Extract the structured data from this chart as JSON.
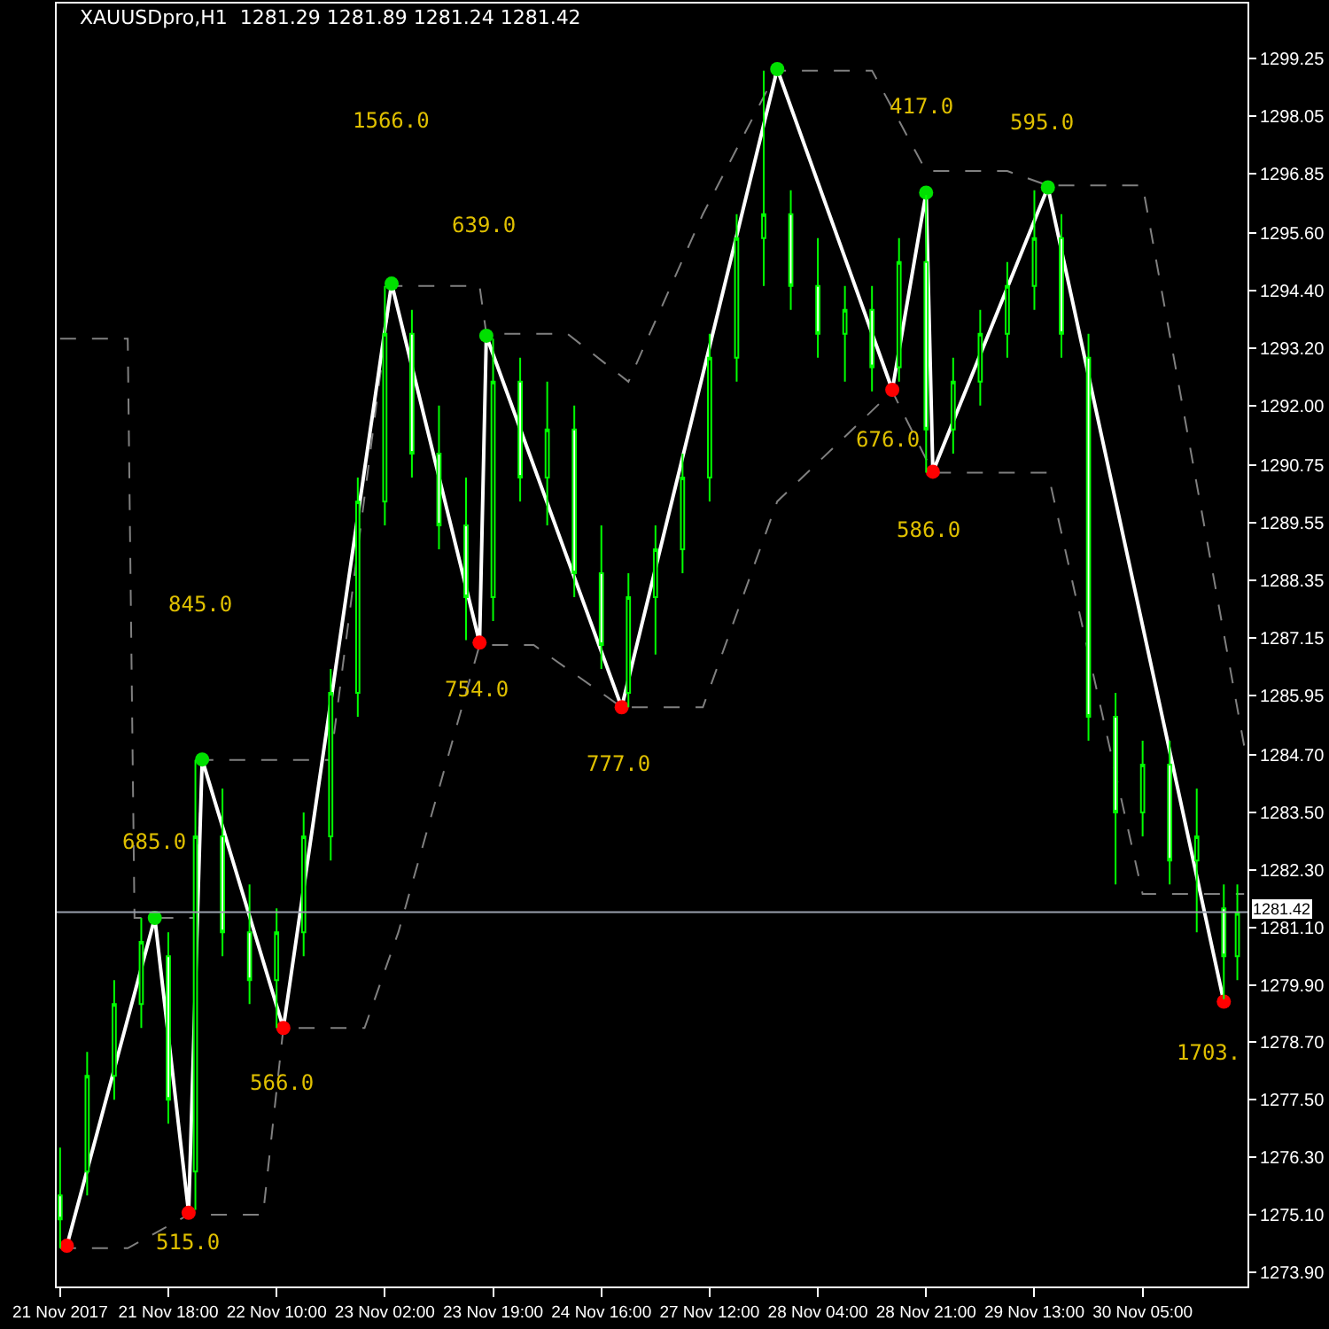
{
  "chart_data": {
    "type": "candlestick",
    "title": "XAUUSDpro,H1  1281.29 1281.89 1281.24 1281.42",
    "categories": [
      "21 Nov 2017",
      null,
      null,
      null,
      null,
      null,
      null,
      null,
      null,
      null,
      null,
      null,
      null,
      null,
      null,
      null,
      "21 Nov 18:00",
      null,
      null,
      null,
      null,
      null,
      null,
      null,
      null,
      null,
      null,
      null,
      null,
      null,
      null,
      null,
      "22 Nov 10:00",
      null,
      null,
      null,
      null,
      null,
      null,
      null,
      null,
      null,
      null,
      null,
      null,
      null,
      null,
      null,
      "23 Nov 02:00",
      null,
      null,
      null,
      null,
      null,
      null,
      null,
      null,
      null,
      null,
      null,
      null,
      null,
      null,
      null,
      "23 Nov 19:00",
      null,
      null,
      null,
      null,
      null,
      null,
      null,
      null,
      null,
      null,
      null,
      null,
      null,
      null,
      null,
      "24 Nov 16:00",
      null,
      null,
      null,
      null,
      null,
      null,
      null,
      null,
      null,
      null,
      null,
      null,
      null,
      null,
      null,
      "27 Nov 12:00",
      null,
      null,
      null,
      null,
      null,
      null,
      null,
      null,
      null,
      null,
      null,
      null,
      null,
      null,
      null,
      "28 Nov 04:00",
      null,
      null,
      null,
      null,
      null,
      null,
      null,
      null,
      null,
      null,
      null,
      null,
      null,
      null,
      null,
      "28 Nov 21:00",
      null,
      null,
      null,
      null,
      null,
      null,
      null,
      null,
      null,
      null,
      null,
      null,
      null,
      null,
      null,
      "29 Nov 13:00",
      null,
      null,
      null,
      null,
      null,
      null,
      null,
      null,
      null,
      null,
      null,
      null,
      null,
      null,
      null,
      "30 Nov 05:00",
      null,
      null,
      null,
      null,
      null,
      null,
      null,
      null,
      null,
      null,
      null,
      null,
      null,
      null,
      null
    ],
    "ylim": [
      1273.6,
      1300.4
    ],
    "yticks": [
      {
        "value": 1299.25,
        "label": "1299.25"
      },
      {
        "value": 1298.05,
        "label": "1298.05"
      },
      {
        "value": 1296.85,
        "label": "1296.85"
      },
      {
        "value": 1295.6,
        "label": "1295.60"
      },
      {
        "value": 1294.4,
        "label": "1294.40"
      },
      {
        "value": 1293.2,
        "label": "1293.20"
      },
      {
        "value": 1292,
        "label": "1292.00"
      },
      {
        "value": 1290.75,
        "label": "1290.75"
      },
      {
        "value": 1289.55,
        "label": "1289.55"
      },
      {
        "value": 1288.35,
        "label": "1288.35"
      },
      {
        "value": 1287.15,
        "label": "1287.15"
      },
      {
        "value": 1285.95,
        "label": "1285.95"
      },
      {
        "value": 1284.7,
        "label": "1284.70"
      },
      {
        "value": 1283.5,
        "label": "1283.50"
      },
      {
        "value": 1282.3,
        "label": "1282.30"
      },
      {
        "value": 1281.1,
        "label": "1281.10"
      },
      {
        "value": 1279.9,
        "label": "1279.90"
      },
      {
        "value": 1278.7,
        "label": "1278.70"
      },
      {
        "value": 1277.5,
        "label": "1277.50"
      },
      {
        "value": 1276.3,
        "label": "1276.30"
      },
      {
        "value": 1275.1,
        "label": "1275.10"
      },
      {
        "value": 1273.9,
        "label": "1273.90"
      }
    ],
    "grid": false,
    "legend": false,
    "series": [
      {
        "type": "line",
        "color": "#808080",
        "line_style": "dashed",
        "marker": "none",
        "values": [
          1293.4,
          null,
          null,
          null,
          null,
          null,
          null,
          null,
          null,
          null,
          1293.4,
          1281.3,
          null,
          null,
          null,
          null,
          null,
          null,
          null,
          null,
          1281.3,
          1284.6,
          null,
          null,
          null,
          null,
          null,
          null,
          null,
          null,
          null,
          null,
          null,
          1284.6,
          null,
          null,
          null,
          null,
          null,
          null,
          1284.6,
          null,
          null,
          null,
          null,
          null,
          null,
          null,
          null,
          1294.5,
          null,
          null,
          null,
          null,
          null,
          null,
          null,
          null,
          null,
          null,
          null,
          null,
          1294.5,
          1293.5,
          null,
          null,
          null,
          null,
          null,
          null,
          null,
          null,
          null,
          null,
          null,
          1293.5,
          null,
          null,
          null,
          null,
          null,
          null,
          null,
          null,
          1292.5,
          null,
          null,
          null,
          null,
          null,
          null,
          null,
          null,
          null,
          null,
          1296.0,
          null,
          null,
          null,
          null,
          null,
          null,
          null,
          null,
          null,
          null,
          1299.0,
          null,
          null,
          null,
          null,
          null,
          null,
          null,
          null,
          null,
          null,
          null,
          null,
          null,
          1299.0,
          null,
          null,
          null,
          null,
          null,
          null,
          null,
          1296.9,
          null,
          null,
          null,
          null,
          null,
          null,
          null,
          null,
          null,
          null,
          null,
          1296.9,
          null,
          null,
          null,
          null,
          null,
          1296.6,
          null,
          null,
          null,
          null,
          null,
          null,
          null,
          null,
          null,
          null,
          null,
          null,
          null,
          1296.6,
          null,
          null,
          null,
          null,
          null,
          null,
          null,
          null,
          null,
          null,
          null,
          null,
          null,
          null,
          1284.9
        ]
      },
      {
        "type": "line",
        "color": "#808080",
        "line_style": "dashed",
        "marker": "none",
        "values": [
          1274.4,
          null,
          null,
          null,
          null,
          null,
          null,
          null,
          null,
          null,
          1274.4,
          null,
          null,
          null,
          null,
          null,
          null,
          null,
          null,
          1275.1,
          null,
          null,
          null,
          null,
          null,
          null,
          null,
          null,
          null,
          null,
          1275.1,
          null,
          null,
          1279.0,
          null,
          null,
          null,
          null,
          null,
          null,
          null,
          null,
          null,
          null,
          null,
          1279.0,
          null,
          null,
          null,
          null,
          1281.0,
          null,
          null,
          null,
          null,
          null,
          null,
          null,
          null,
          null,
          null,
          null,
          1287.0,
          null,
          null,
          null,
          null,
          null,
          null,
          null,
          1287.0,
          null,
          null,
          null,
          null,
          null,
          null,
          null,
          null,
          null,
          null,
          null,
          null,
          1285.7,
          null,
          null,
          null,
          null,
          null,
          null,
          null,
          null,
          null,
          null,
          null,
          1285.7,
          null,
          null,
          null,
          null,
          null,
          null,
          null,
          null,
          null,
          null,
          1290.0,
          null,
          null,
          null,
          null,
          null,
          null,
          null,
          null,
          null,
          null,
          null,
          null,
          null,
          null,
          null,
          null,
          1292.3,
          null,
          null,
          null,
          null,
          null,
          1290.6,
          null,
          null,
          null,
          null,
          null,
          null,
          null,
          null,
          null,
          null,
          1290.6,
          null,
          null,
          null,
          null,
          null,
          1290.6,
          null,
          null,
          null,
          null,
          null,
          null,
          null,
          null,
          null,
          null,
          null,
          null,
          null,
          1281.8,
          null,
          null,
          null,
          null,
          null,
          null,
          null,
          null,
          null,
          null,
          null,
          null,
          null,
          null,
          1281.8
        ]
      },
      {
        "color": "#00ff00",
        "ohlc": [
          [
            1275.5,
            1276.5,
            1274.4,
            1275.0
          ],
          null,
          null,
          null,
          [
            1276.0,
            1278.5,
            1275.5,
            1278.0
          ],
          null,
          null,
          null,
          [
            1278.0,
            1280.0,
            1277.5,
            1279.5
          ],
          null,
          null,
          null,
          [
            1279.5,
            1281.3,
            1279.0,
            1280.8
          ],
          null,
          null,
          null,
          [
            1280.5,
            1281.0,
            1277.0,
            1277.5
          ],
          null,
          null,
          null,
          [
            1276.0,
            1284.6,
            1275.2,
            1283.0
          ],
          null,
          null,
          null,
          [
            1283.0,
            1284.0,
            1280.5,
            1281.0
          ],
          null,
          null,
          null,
          [
            1281.0,
            1282.0,
            1279.5,
            1280.0
          ],
          null,
          null,
          null,
          [
            1280.0,
            1281.5,
            1279.0,
            1281.0
          ],
          null,
          null,
          null,
          [
            1281.0,
            1283.5,
            1280.5,
            1283.0
          ],
          null,
          null,
          null,
          [
            1283.0,
            1286.5,
            1282.5,
            1286.0
          ],
          null,
          null,
          null,
          [
            1286.0,
            1290.5,
            1285.5,
            1290.0
          ],
          null,
          null,
          null,
          [
            1290.0,
            1294.5,
            1289.5,
            1293.5
          ],
          null,
          null,
          null,
          [
            1293.5,
            1294.0,
            1290.5,
            1291.0
          ],
          null,
          null,
          null,
          [
            1291.0,
            1292.0,
            1289.0,
            1289.5
          ],
          null,
          null,
          null,
          [
            1289.5,
            1290.5,
            1287.1,
            1288.0
          ],
          null,
          null,
          null,
          [
            1288.0,
            1293.4,
            1287.5,
            1292.5
          ],
          null,
          null,
          null,
          [
            1292.5,
            1293.0,
            1290.0,
            1290.5
          ],
          null,
          null,
          null,
          [
            1290.5,
            1292.5,
            1289.5,
            1291.5
          ],
          null,
          null,
          null,
          [
            1291.5,
            1292.0,
            1288.0,
            1288.5
          ],
          null,
          null,
          null,
          [
            1288.5,
            1289.5,
            1286.5,
            1287.0
          ],
          null,
          null,
          null,
          [
            1286.0,
            1288.5,
            1285.7,
            1288.0
          ],
          null,
          null,
          null,
          [
            1288.0,
            1289.5,
            1286.8,
            1289.0
          ],
          null,
          null,
          null,
          [
            1289.0,
            1291.0,
            1288.5,
            1290.5
          ],
          null,
          null,
          null,
          [
            1290.5,
            1293.5,
            1290.0,
            1293.0
          ],
          null,
          null,
          null,
          [
            1293.0,
            1296.0,
            1292.5,
            1295.5
          ],
          null,
          null,
          null,
          [
            1295.5,
            1299.0,
            1294.5,
            1296.0
          ],
          null,
          null,
          null,
          [
            1296.0,
            1296.5,
            1294.0,
            1294.5
          ],
          null,
          null,
          null,
          [
            1294.5,
            1295.5,
            1293.0,
            1293.5
          ],
          null,
          null,
          null,
          [
            1293.5,
            1294.5,
            1292.5,
            1294.0
          ],
          null,
          null,
          null,
          [
            1294.0,
            1294.5,
            1292.3,
            1292.8
          ],
          null,
          null,
          null,
          [
            1292.8,
            1295.5,
            1292.5,
            1295.0
          ],
          null,
          null,
          null,
          [
            1295.0,
            1296.4,
            1290.6,
            1291.5
          ],
          null,
          null,
          null,
          [
            1291.5,
            1293.0,
            1291.0,
            1292.5
          ],
          null,
          null,
          null,
          [
            1292.5,
            1294.0,
            1292.0,
            1293.5
          ],
          null,
          null,
          null,
          [
            1293.5,
            1295.0,
            1293.0,
            1294.5
          ],
          null,
          null,
          null,
          [
            1294.5,
            1296.5,
            1294.0,
            1295.5
          ],
          null,
          null,
          null,
          [
            1295.5,
            1296.0,
            1293.0,
            1293.5
          ],
          null,
          null,
          null,
          [
            1293.0,
            1293.5,
            1285.0,
            1285.5
          ],
          null,
          null,
          null,
          [
            1285.5,
            1286.0,
            1282.0,
            1283.5
          ],
          null,
          null,
          null,
          [
            1283.5,
            1285.0,
            1283.0,
            1284.5
          ],
          null,
          null,
          null,
          [
            1284.5,
            1285.0,
            1282.0,
            1282.5
          ],
          null,
          null,
          null,
          [
            1282.5,
            1284.0,
            1281.0,
            1283.0
          ],
          null,
          null,
          null,
          [
            1281.5,
            1282.0,
            1279.6,
            1280.5
          ],
          null,
          [
            1280.5,
            1282.0,
            1280.0,
            1281.4
          ],
          null
        ]
      },
      {
        "type": "line",
        "color": "#ffffff",
        "marker": "circle",
        "line_style": "solid",
        "values": [
          null,
          1274.45,
          null,
          null,
          null,
          null,
          null,
          null,
          null,
          null,
          null,
          null,
          null,
          null,
          1281.3,
          null,
          null,
          null,
          null,
          1275.14,
          null,
          1284.61,
          null,
          null,
          null,
          null,
          null,
          null,
          null,
          null,
          null,
          null,
          null,
          1279.0,
          null,
          null,
          null,
          null,
          null,
          null,
          null,
          null,
          null,
          null,
          null,
          null,
          null,
          null,
          null,
          1294.55,
          null,
          null,
          null,
          null,
          null,
          null,
          null,
          null,
          null,
          null,
          null,
          null,
          1287.05,
          1293.46,
          null,
          null,
          null,
          null,
          null,
          null,
          null,
          null,
          null,
          null,
          null,
          null,
          null,
          null,
          null,
          null,
          null,
          null,
          null,
          1285.7,
          null,
          null,
          null,
          null,
          null,
          null,
          null,
          null,
          null,
          null,
          null,
          null,
          null,
          null,
          null,
          null,
          null,
          null,
          null,
          null,
          null,
          null,
          1299.03,
          null,
          null,
          null,
          null,
          null,
          null,
          null,
          null,
          null,
          null,
          null,
          null,
          null,
          null,
          null,
          null,
          1292.33,
          null,
          null,
          null,
          null,
          1296.45,
          1290.62,
          null,
          null,
          null,
          null,
          null,
          null,
          null,
          null,
          null,
          null,
          null,
          null,
          null,
          null,
          null,
          null,
          1296.56,
          null,
          null,
          null,
          null,
          null,
          null,
          null,
          null,
          null,
          null,
          null,
          null,
          null,
          null,
          null,
          null,
          null,
          null,
          null,
          null,
          null,
          null,
          null,
          null,
          null,
          1279.55,
          null,
          null,
          null
        ],
        "colors": [
          null,
          "#ff0000",
          null,
          null,
          null,
          null,
          null,
          null,
          null,
          null,
          null,
          null,
          null,
          null,
          "#00e000",
          null,
          null,
          null,
          null,
          "#ff0000",
          null,
          "#00e000",
          null,
          null,
          null,
          null,
          null,
          null,
          null,
          null,
          null,
          null,
          null,
          "#ff0000",
          null,
          null,
          null,
          null,
          null,
          null,
          null,
          null,
          null,
          null,
          null,
          null,
          null,
          null,
          null,
          "#00e000",
          null,
          null,
          null,
          null,
          null,
          null,
          null,
          null,
          null,
          null,
          null,
          null,
          "#ff0000",
          "#00e000",
          null,
          null,
          null,
          null,
          null,
          null,
          null,
          null,
          null,
          null,
          null,
          null,
          null,
          null,
          null,
          null,
          null,
          null,
          null,
          "#ff0000",
          null,
          null,
          null,
          null,
          null,
          null,
          null,
          null,
          null,
          null,
          null,
          null,
          null,
          null,
          null,
          null,
          null,
          null,
          null,
          null,
          null,
          null,
          "#00e000",
          null,
          null,
          null,
          null,
          null,
          null,
          null,
          null,
          null,
          null,
          null,
          null,
          null,
          null,
          null,
          null,
          "#ff0000",
          null,
          null,
          null,
          null,
          "#00e000",
          "#ff0000",
          null,
          null,
          null,
          null,
          null,
          null,
          null,
          null,
          null,
          null,
          null,
          null,
          null,
          null,
          null,
          null,
          "#00e000",
          null,
          null,
          null,
          null,
          null,
          null,
          null,
          null,
          null,
          null,
          null,
          null,
          null,
          null,
          null,
          null,
          null,
          null,
          null,
          null,
          null,
          null,
          null,
          null,
          null,
          "#ff0000",
          null,
          null,
          null
        ]
      }
    ],
    "annotations": [
      "515.0",
      "685.0",
      "566.0",
      "1566.0",
      "845.0",
      "639.0",
      "754.0",
      "777.0",
      "417.0",
      "676.0",
      "586.0",
      "595.0",
      "1703."
    ],
    "ref_lines": [
      {
        "axis": "y",
        "value": 1281.42,
        "label": "1281.42",
        "color": "#9aa0ad"
      }
    ]
  }
}
